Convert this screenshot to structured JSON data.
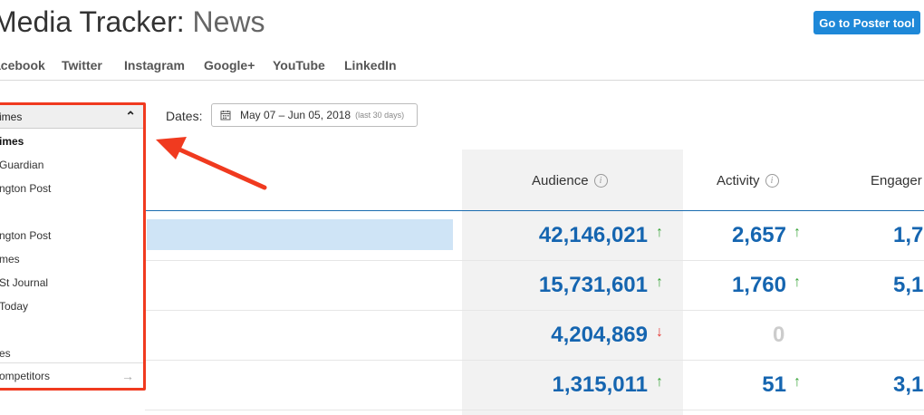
{
  "header": {
    "title_main": "Media Tracker:",
    "title_sub": "News",
    "poster_button": "Go to Poster tool"
  },
  "tabs": [
    "acebook",
    "Twitter",
    "Instagram",
    "Google+",
    "YouTube",
    "LinkedIn"
  ],
  "filters": {
    "dates_label": "Dates:",
    "date_range": "May 07 – Jun 05, 2018",
    "date_note": "(last 30 days)"
  },
  "dropdown": {
    "selected": "imes",
    "items": [
      "imes",
      "Guardian",
      "ngton Post",
      "",
      "ngton Post",
      "mes",
      "St Journal",
      "Today",
      "",
      "es"
    ],
    "footer": "ompetitors"
  },
  "columns": {
    "audience": "Audience",
    "activity": "Activity",
    "engagement": "Engager"
  },
  "rows": [
    {
      "audience": "42,146,021",
      "audience_trend": "↑",
      "activity": "2,657",
      "activity_trend": "↑",
      "engagement": "1,7"
    },
    {
      "audience": "15,731,601",
      "audience_trend": "↑",
      "activity": "1,760",
      "activity_trend": "↑",
      "engagement": "5,1"
    },
    {
      "audience": "4,204,869",
      "audience_trend": "↓",
      "activity": "0",
      "activity_trend": "",
      "engagement": ""
    },
    {
      "audience": "1,315,011",
      "audience_trend": "↑",
      "activity": "51",
      "activity_trend": "↑",
      "engagement": "3,1"
    }
  ],
  "colors": {
    "accent": "#1e88d8",
    "value_blue": "#1565b0",
    "trend_up": "#3aa53a",
    "trend_down": "#e53935",
    "annotation_red": "#f03a1f"
  },
  "icons": {
    "info": "info-icon",
    "calendar": "calendar-icon",
    "collapse": "chevron-up-icon",
    "footer_arrow": "arrow-right-icon"
  }
}
